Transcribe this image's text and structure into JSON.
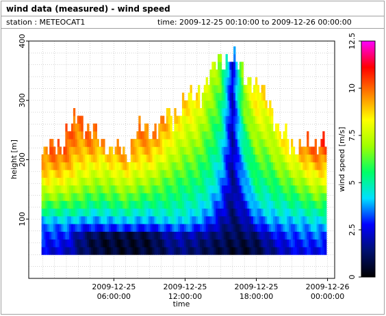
{
  "header": {
    "title": "wind data (measured) - wind speed",
    "station": "station : METEOCAT1",
    "timespan": "time: 2009-12-25 00:10:00 to 2009-12-26 00:00:00"
  },
  "chart_data": {
    "type": "heatmap",
    "title": "wind data (measured) - wind speed",
    "xlabel": "time",
    "ylabel": "height [m]",
    "colorbar_label": "wind speed [m/s]",
    "x_hour_range": [
      -1.17,
      24.6
    ],
    "ylim": [
      0,
      400
    ],
    "x_ticks": [
      {
        "hour": 6,
        "line1": "2009-12-25",
        "line2": "06:00:00"
      },
      {
        "hour": 12,
        "line1": "2009-12-25",
        "line2": "12:00:00"
      },
      {
        "hour": 18,
        "line1": "2009-12-25",
        "line2": "18:00:00"
      },
      {
        "hour": 24,
        "line1": "2009-12-26",
        "line2": "00:00:00"
      }
    ],
    "y_ticks": [
      100,
      200,
      300,
      400
    ],
    "colorbar_ticks": [
      "0",
      "2.5",
      "5",
      "7.5",
      "10",
      "12.5"
    ],
    "color_range": [
      0,
      12.5
    ],
    "colormap": [
      "#000000",
      "#001070",
      "#0000ff",
      "#00e0ff",
      "#00ff66",
      "#a0ff00",
      "#ffff00",
      "#ff8000",
      "#ff0000",
      "#ff00ff"
    ],
    "grid": true,
    "gate_spacing_m": 13,
    "first_gate_m": 40,
    "time_step_h": 0.1667,
    "profiles": [
      {
        "hour": 0.0,
        "top": 200,
        "speeds": [
          2.5,
          2.8,
          3.2,
          3.6,
          4.0,
          5.0,
          6.0,
          7.0,
          7.6,
          8.2,
          8.7,
          9.2,
          9.5
        ]
      },
      {
        "hour": 1.0,
        "top": 215,
        "speeds": [
          2.4,
          2.7,
          3.0,
          3.4,
          4.2,
          5.2,
          6.0,
          6.8,
          7.6,
          8.3,
          8.8,
          9.3,
          9.8,
          10.2
        ]
      },
      {
        "hour": 2.0,
        "top": 230,
        "speeds": [
          2.2,
          2.6,
          3.0,
          3.5,
          4.2,
          5.0,
          5.8,
          6.7,
          7.4,
          8.1,
          8.7,
          9.2,
          9.6,
          10.0,
          10.3
        ]
      },
      {
        "hour": 3.0,
        "top": 270,
        "speeds": [
          1.5,
          1.6,
          1.8,
          3.0,
          4.0,
          5.0,
          5.8,
          6.4,
          7.0,
          7.6,
          8.0,
          8.4,
          8.8,
          9.0,
          9.3,
          9.6,
          9.8
        ]
      },
      {
        "hour": 4.0,
        "top": 240,
        "speeds": [
          1.0,
          0.9,
          1.2,
          2.8,
          3.8,
          4.6,
          5.4,
          6.0,
          6.6,
          7.2,
          7.8,
          8.3,
          8.8,
          9.3,
          9.7,
          10.0
        ]
      },
      {
        "hour": 5.0,
        "top": 225,
        "speeds": [
          0.7,
          0.6,
          0.9,
          2.9,
          3.9,
          4.6,
          5.3,
          6.0,
          6.6,
          7.1,
          7.6,
          8.1,
          8.5,
          9.0,
          9.4
        ]
      },
      {
        "hour": 6.0,
        "top": 210,
        "speeds": [
          0.6,
          0.6,
          0.9,
          3.0,
          4.0,
          4.8,
          5.5,
          6.1,
          6.7,
          7.3,
          7.8,
          8.4,
          8.9,
          9.3
        ]
      },
      {
        "hour": 7.0,
        "top": 200,
        "speeds": [
          0.5,
          0.6,
          0.8,
          3.1,
          4.2,
          5.0,
          5.8,
          6.5,
          7.1,
          7.7,
          8.3,
          8.8,
          9.3
        ]
      },
      {
        "hour": 8.0,
        "top": 245,
        "speeds": [
          0.6,
          0.6,
          0.8,
          3.0,
          4.0,
          4.7,
          5.4,
          6.0,
          6.6,
          7.2,
          7.7,
          8.2,
          8.6,
          9.0,
          9.3,
          9.6
        ]
      },
      {
        "hour": 9.0,
        "top": 240,
        "speeds": [
          0.7,
          0.6,
          0.9,
          2.8,
          3.8,
          4.5,
          5.2,
          5.8,
          6.5,
          7.1,
          7.6,
          8.2,
          8.7,
          9.1,
          9.5,
          9.8
        ]
      },
      {
        "hour": 10.0,
        "top": 255,
        "speeds": [
          1.0,
          1.2,
          1.5,
          3.1,
          4.2,
          4.8,
          5.3,
          5.7,
          6.1,
          6.5,
          7.0,
          7.5,
          8.0,
          8.4,
          8.8,
          9.2,
          9.5
        ]
      },
      {
        "hour": 11.0,
        "top": 265,
        "speeds": [
          1.5,
          1.8,
          2.1,
          3.3,
          4.3,
          4.8,
          5.2,
          5.5,
          5.8,
          6.1,
          6.5,
          6.9,
          7.3,
          7.6,
          7.9,
          8.2,
          8.5,
          8.8
        ]
      },
      {
        "hour": 12.0,
        "top": 290,
        "speeds": [
          1.4,
          1.7,
          2.0,
          3.4,
          4.2,
          4.6,
          4.9,
          5.2,
          5.5,
          5.8,
          6.1,
          6.4,
          6.7,
          7.0,
          7.3,
          7.6,
          7.9,
          8.2,
          8.5,
          8.7
        ]
      },
      {
        "hour": 13.0,
        "top": 305,
        "speeds": [
          1.2,
          1.5,
          1.9,
          3.0,
          3.8,
          4.3,
          4.7,
          5.0,
          5.3,
          5.6,
          5.9,
          6.1,
          6.4,
          6.7,
          7.0,
          7.3,
          7.6,
          7.9,
          8.1,
          8.4,
          8.6
        ]
      },
      {
        "hour": 14.0,
        "top": 330,
        "speeds": [
          1.0,
          1.2,
          1.6,
          2.6,
          3.3,
          3.8,
          4.2,
          4.5,
          4.8,
          5.0,
          5.2,
          5.4,
          5.6,
          5.8,
          6.0,
          6.2,
          6.4,
          6.6,
          6.8,
          7.0,
          7.2,
          7.4,
          7.6
        ]
      },
      {
        "hour": 15.0,
        "top": 365,
        "speeds": [
          0.8,
          1.0,
          1.3,
          1.8,
          2.2,
          2.6,
          3.0,
          3.3,
          3.6,
          3.9,
          4.1,
          4.3,
          4.5,
          4.7,
          4.9,
          5.1,
          5.3,
          5.5,
          5.6,
          5.8,
          6.0,
          6.2,
          6.4,
          6.6,
          6.8,
          7.0
        ]
      },
      {
        "hour": 16.0,
        "top": 365,
        "speeds": [
          0.6,
          0.8,
          1.0,
          1.2,
          1.3,
          1.4,
          1.5,
          1.5,
          1.6,
          1.7,
          1.7,
          1.8,
          1.8,
          1.9,
          1.9,
          2.0,
          2.0,
          2.1,
          2.1,
          2.2,
          2.2,
          2.3,
          2.3,
          2.4,
          2.4,
          2.5
        ]
      },
      {
        "hour": 17.0,
        "top": 340,
        "speeds": [
          0.6,
          0.8,
          1.1,
          1.5,
          1.9,
          2.3,
          2.7,
          3.1,
          3.4,
          3.7,
          4.0,
          4.3,
          4.6,
          4.9,
          5.2,
          5.5,
          5.8,
          6.1,
          6.4,
          6.7,
          6.9,
          7.1,
          7.3,
          7.5
        ]
      },
      {
        "hour": 18.0,
        "top": 310,
        "speeds": [
          0.8,
          1.0,
          1.4,
          2.4,
          3.2,
          3.8,
          4.3,
          4.7,
          5.1,
          5.4,
          5.7,
          6.0,
          6.3,
          6.6,
          6.9,
          7.2,
          7.5,
          7.8,
          8.1,
          8.4,
          8.6
        ]
      },
      {
        "hour": 19.0,
        "top": 300,
        "speeds": [
          1.4,
          1.8,
          2.3,
          3.2,
          3.8,
          4.2,
          4.6,
          4.9,
          5.2,
          5.5,
          5.8,
          6.1,
          6.4,
          6.7,
          7.0,
          7.3,
          7.6,
          7.9,
          8.2,
          8.5
        ]
      },
      {
        "hour": 20.0,
        "top": 235,
        "speeds": [
          2.0,
          2.4,
          2.8,
          3.4,
          4.0,
          4.5,
          4.9,
          5.3,
          5.7,
          6.1,
          6.5,
          6.9,
          7.3,
          7.7,
          8.1
        ]
      },
      {
        "hour": 21.0,
        "top": 225,
        "speeds": [
          2.4,
          2.8,
          3.2,
          3.6,
          4.1,
          4.6,
          5.1,
          5.6,
          6.1,
          6.6,
          7.1,
          7.6,
          8.1,
          8.6,
          9.1
        ]
      },
      {
        "hour": 22.0,
        "top": 215,
        "speeds": [
          2.6,
          2.9,
          3.3,
          3.7,
          4.2,
          4.8,
          5.4,
          6.0,
          6.6,
          7.2,
          7.8,
          8.4,
          9.0,
          9.6
        ]
      },
      {
        "hour": 23.0,
        "top": 225,
        "speeds": [
          2.6,
          3.0,
          3.4,
          3.9,
          4.5,
          5.1,
          5.8,
          6.5,
          7.2,
          7.9,
          8.5,
          9.1,
          9.6,
          10.0,
          10.4
        ]
      },
      {
        "hour": 24.0,
        "top": 225,
        "speeds": [
          2.5,
          2.9,
          3.3,
          3.8,
          4.4,
          5.1,
          5.8,
          6.5,
          7.2,
          7.9,
          8.5,
          9.1,
          9.6,
          10.1,
          10.6
        ]
      }
    ]
  }
}
